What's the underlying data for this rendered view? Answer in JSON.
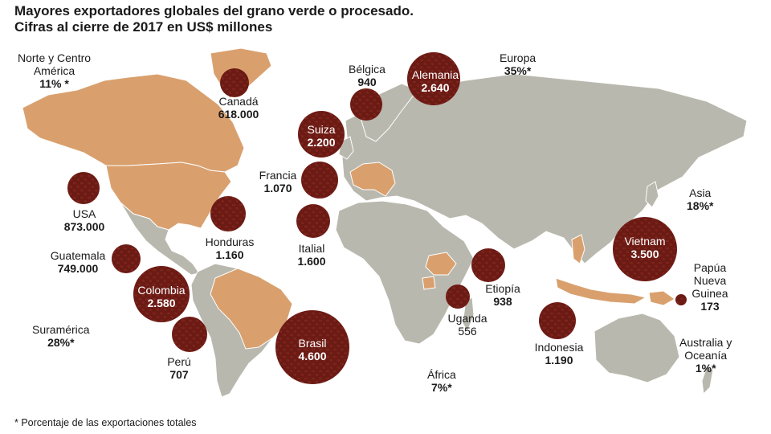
{
  "title_line1": "Mayores exportadores globales del grano verde o procesado.",
  "title_line2": "Cifras al cierre de 2017 en US$ millones",
  "footnote": "* Porcentaje de las exportaciones totales",
  "colors": {
    "bubble": "#6b1a14",
    "exporter_land": "#d9a06e",
    "other_land": "#b9b8ae",
    "water": "#ffffff"
  },
  "chart_data": {
    "type": "bubble-map",
    "title": "Mayores exportadores globales del grano verde o procesado. Cifras al cierre de 2017 en US$ millones",
    "points": [
      {
        "name": "Canadá",
        "label": "Canadá",
        "display_value": "618.000",
        "value": 618000
      },
      {
        "name": "USA",
        "label": "USA",
        "display_value": "873.000",
        "value": 873000
      },
      {
        "name": "Guatemala",
        "label": "Guatemala",
        "display_value": "749.000",
        "value": 749000
      },
      {
        "name": "Honduras",
        "label": "Honduras",
        "display_value": "1.160",
        "value": 1160
      },
      {
        "name": "Colombia",
        "label": "Colombia",
        "display_value": "2.580",
        "value": 2580
      },
      {
        "name": "Perú",
        "label": "Perú",
        "display_value": "707",
        "value": 707
      },
      {
        "name": "Brasil",
        "label": "Brasil",
        "display_value": "4.600",
        "value": 4600
      },
      {
        "name": "Bélgica",
        "label": "Bélgica",
        "display_value": "940",
        "value": 940
      },
      {
        "name": "Alemania",
        "label": "Alemania",
        "display_value": "2.640",
        "value": 2640
      },
      {
        "name": "Suiza",
        "label": "Suiza",
        "display_value": "2.200",
        "value": 2200
      },
      {
        "name": "Francia",
        "label": "Francia",
        "display_value": "1.070",
        "value": 1070
      },
      {
        "name": "Italia",
        "label": "Italial",
        "display_value": "1.600",
        "value": 1600
      },
      {
        "name": "Etiopía",
        "label": "Etiopía",
        "display_value": "938",
        "value": 938
      },
      {
        "name": "Uganda",
        "label": "Uganda",
        "display_value": "556",
        "value": 556
      },
      {
        "name": "Indonesia",
        "label": "Indonesia",
        "display_value": "1.190",
        "value": 1190
      },
      {
        "name": "Vietnam",
        "label": "Vietnam",
        "display_value": "3.500",
        "value": 3500
      },
      {
        "name": "Papúa Nueva Guinea",
        "label": "Papúa\nNueva\nGuinea",
        "display_value": "173",
        "value": 173
      }
    ],
    "regions": [
      {
        "name": "Norte y Centro\nAmérica",
        "share": "11% *"
      },
      {
        "name": "Suramérica",
        "share": "28%*"
      },
      {
        "name": "Europa",
        "share": "35%*"
      },
      {
        "name": "Asia",
        "share": "18%*"
      },
      {
        "name": "África",
        "share": "7%*"
      },
      {
        "name": "Australia y\nOceanía",
        "share": "1%*"
      }
    ]
  }
}
